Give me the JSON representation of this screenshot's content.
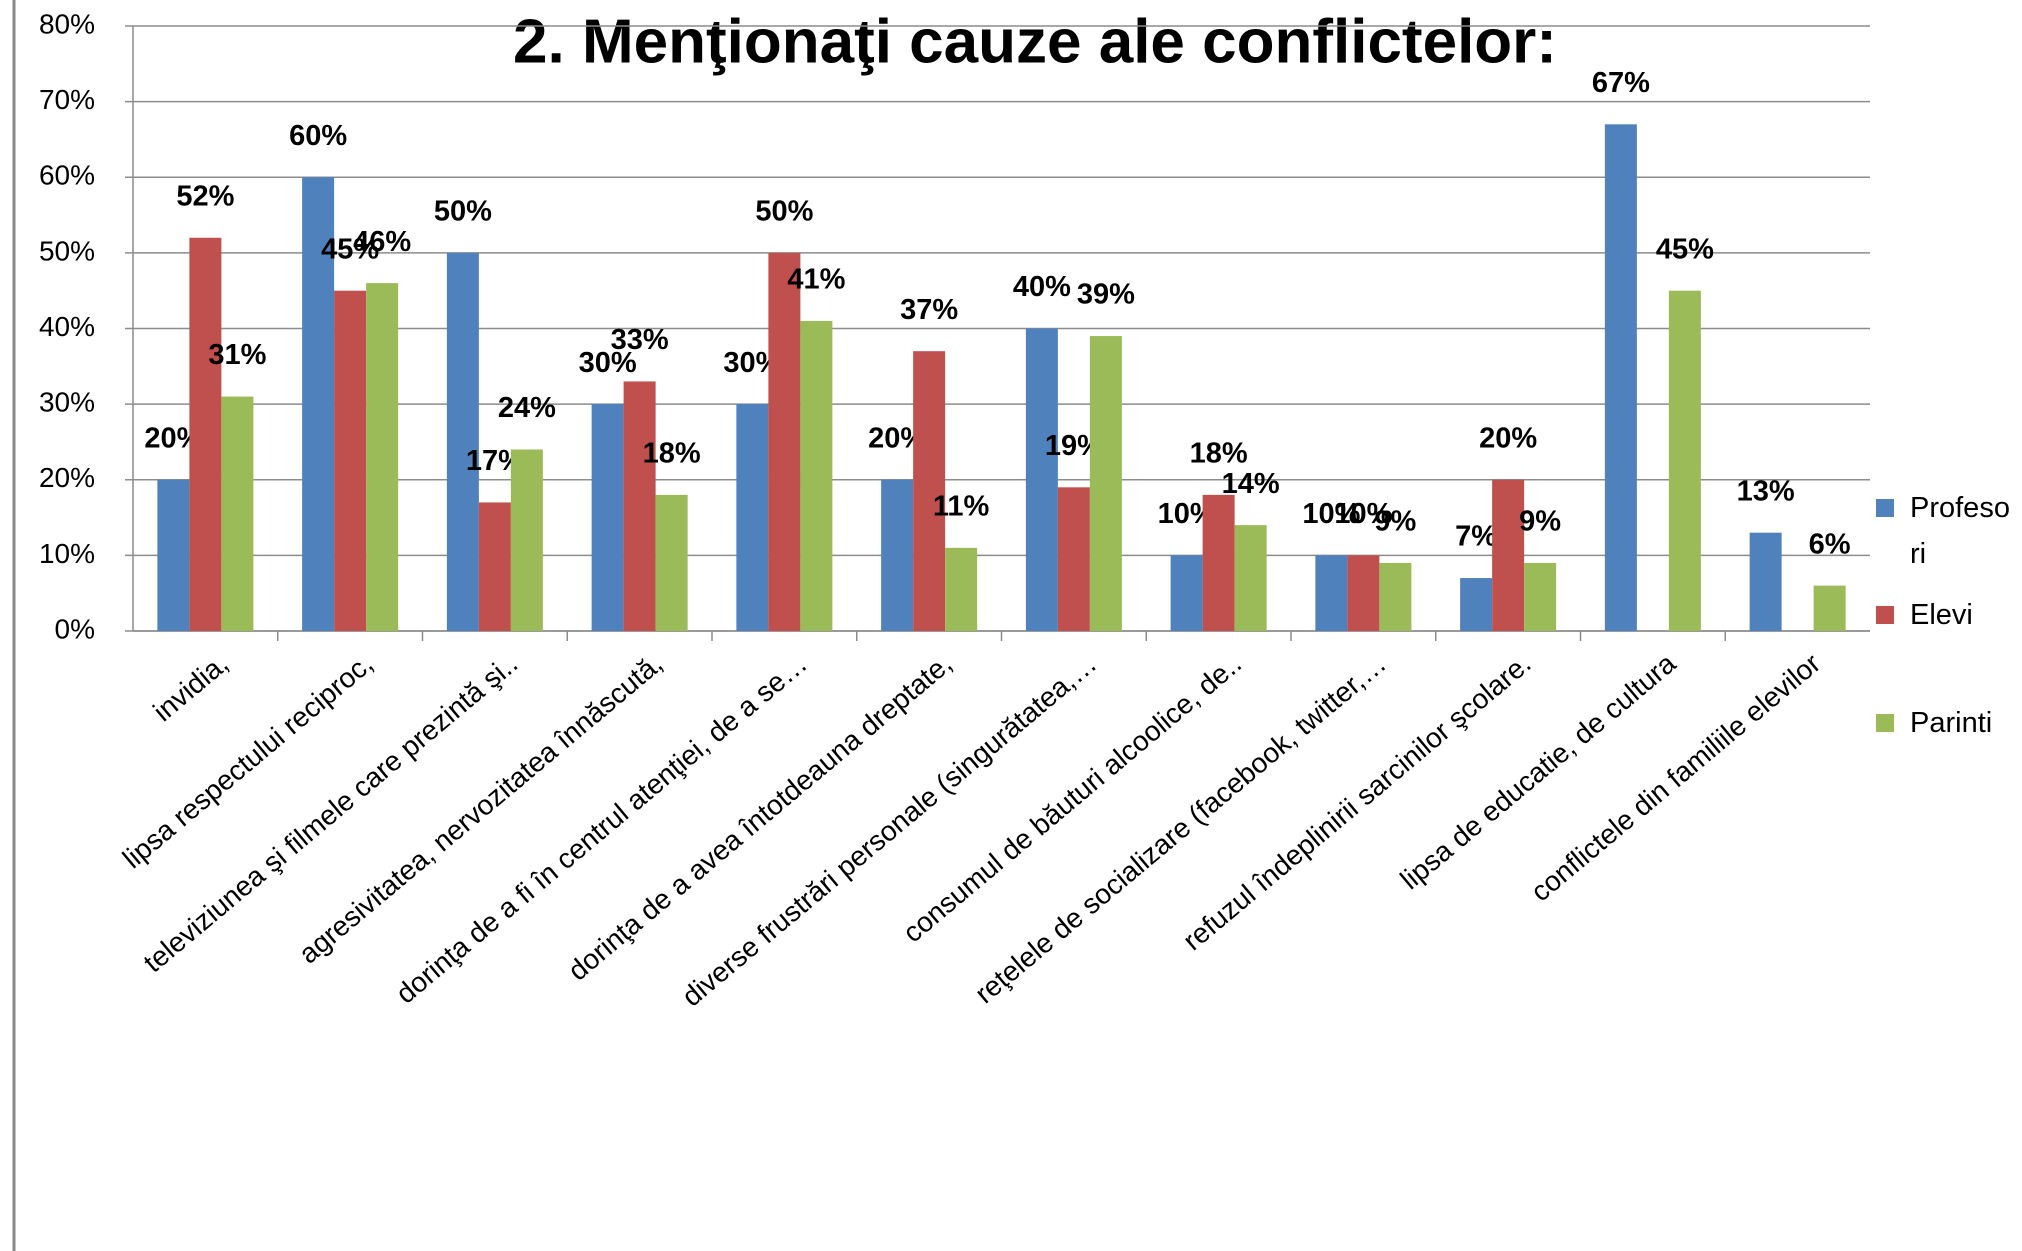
{
  "chart_data": {
    "type": "bar",
    "title": "2. Menţionaţi  cauze ale conflictelor:",
    "categories": [
      "invidia,",
      "lipsa respectului reciproc,",
      "televiziunea şi filmele care prezintă şi..",
      "agresivitatea, nervozitatea înnăscută,",
      "dorinţa de a fi în centrul atenţiei, de a se…",
      "dorinţa de a avea întotdeauna dreptate,",
      "diverse frustrări personale (singurătatea,…",
      "consumul de băuturi alcoolice, de..",
      "reţelele de socializare (facebook, twitter,…",
      "refuzul îndeplinirii sarcinilor şcolare.",
      "lipsa de educatie, de cultura",
      "conflictele din familiile elevilor"
    ],
    "series": [
      {
        "name": "Profesori",
        "color": "#4f81bd",
        "values": [
          20,
          60,
          50,
          30,
          30,
          20,
          40,
          10,
          10,
          7,
          67,
          13
        ],
        "value_labels": [
          "20%",
          "60%",
          "50%",
          "30%",
          "30%",
          "20%",
          "40%",
          "10%",
          "10%",
          "7%",
          "67%",
          "13%"
        ]
      },
      {
        "name": "Elevi",
        "color": "#c0504d",
        "values": [
          52,
          45,
          17,
          33,
          50,
          37,
          19,
          18,
          10,
          20,
          null,
          null
        ],
        "value_labels": [
          "52%",
          "45%",
          "17%",
          "33%",
          "50%",
          "37%",
          "19%",
          "18%",
          "10%",
          "20%",
          null,
          null
        ]
      },
      {
        "name": "Parinti",
        "color": "#9bbb59",
        "values": [
          31,
          46,
          24,
          18,
          41,
          11,
          39,
          14,
          9,
          9,
          45,
          6
        ],
        "value_labels": [
          "31%",
          "46%",
          "24%",
          "18%",
          "41%",
          "11%",
          "39%",
          "14%",
          "9%",
          "9%",
          "45%",
          "6%"
        ]
      }
    ],
    "ylim": [
      0,
      80
    ],
    "yticks": [
      {
        "value": 0,
        "label": "0%"
      },
      {
        "value": 10,
        "label": "10%"
      },
      {
        "value": 20,
        "label": "20%"
      },
      {
        "value": 30,
        "label": "30%"
      },
      {
        "value": 40,
        "label": "40%"
      },
      {
        "value": 50,
        "label": "50%"
      },
      {
        "value": 60,
        "label": "60%"
      },
      {
        "value": 70,
        "label": "70%"
      },
      {
        "value": 80,
        "label": "80%"
      }
    ],
    "grid": true,
    "legend": "right"
  }
}
